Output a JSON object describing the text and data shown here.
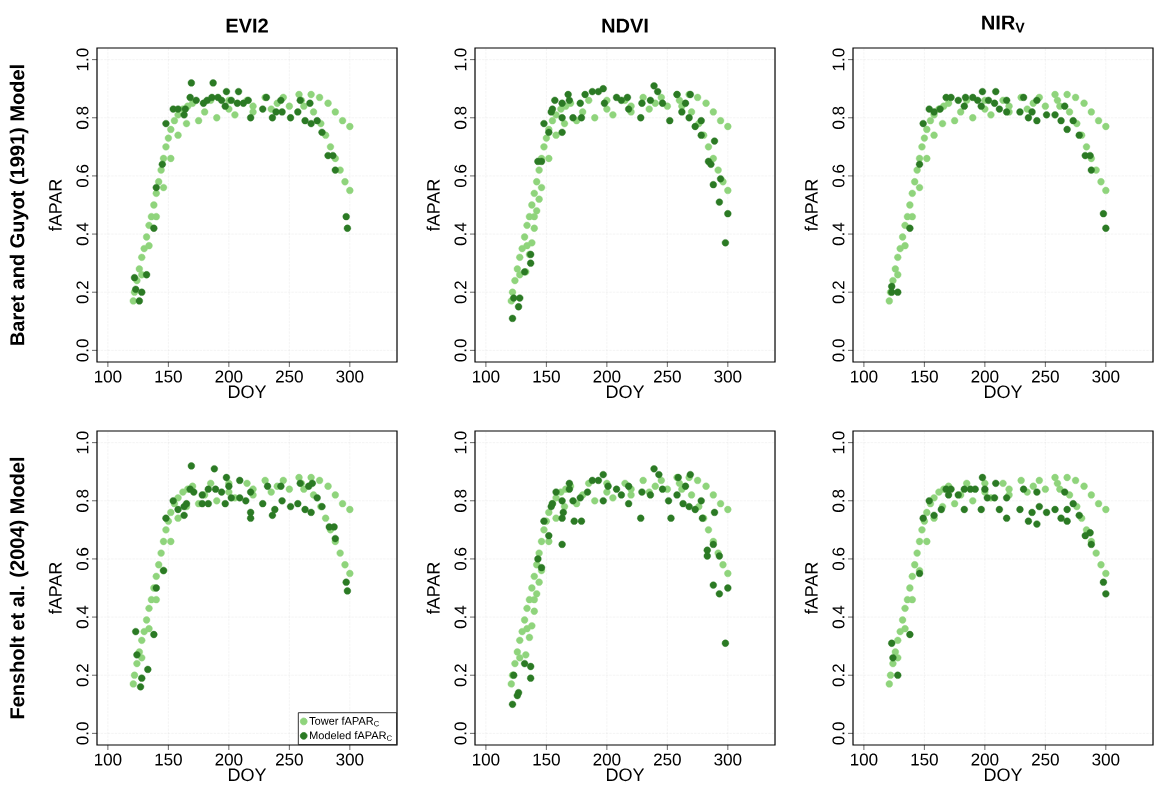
{
  "chart_data": [
    {
      "type": "scatter",
      "title": "EVI2",
      "xlabel": "DOY",
      "ylabel": "fAPAR",
      "annotations": [
        "Baret and Guyot (1991) Model"
      ],
      "xlim": [
        91,
        339
      ],
      "ylim": [
        -0.04,
        1.04
      ],
      "xticks": [
        100,
        150,
        200,
        250,
        300
      ],
      "yticks": [
        {
          "value": 0,
          "label": "0.0"
        },
        {
          "value": 0.2,
          "label": "0.2"
        },
        {
          "value": 0.4,
          "label": "0.4"
        },
        {
          "value": 0.6,
          "label": "0.6"
        },
        {
          "value": 0.8,
          "label": "0.8"
        },
        {
          "value": 1.0,
          "label": "1.0"
        }
      ],
      "grid": true,
      "marker": "circle",
      "series": [
        {
          "color": "#8fd47c",
          "x": [
            121,
            122,
            124,
            126,
            128,
            130,
            132,
            134,
            136,
            138,
            140,
            142,
            144,
            146,
            148,
            150,
            152,
            155,
            158,
            162,
            166,
            128,
            134,
            140,
            146,
            152,
            158,
            165,
            175,
            190,
            205,
            220,
            235,
            250,
            262,
            170,
            185,
            200,
            215,
            230,
            245,
            258,
            268,
            180,
            200,
            220,
            240,
            260,
            275,
            282,
            288,
            294,
            300,
            270,
            276,
            280,
            284,
            288,
            292,
            296,
            300
          ],
          "values": [
            0.17,
            0.2,
            0.24,
            0.28,
            0.32,
            0.35,
            0.39,
            0.43,
            0.46,
            0.5,
            0.54,
            0.58,
            0.62,
            0.66,
            0.7,
            0.73,
            0.76,
            0.79,
            0.81,
            0.83,
            0.84,
            0.26,
            0.36,
            0.46,
            0.56,
            0.66,
            0.74,
            0.78,
            0.79,
            0.8,
            0.81,
            0.82,
            0.83,
            0.84,
            0.84,
            0.85,
            0.86,
            0.86,
            0.86,
            0.87,
            0.87,
            0.88,
            0.88,
            0.82,
            0.83,
            0.84,
            0.85,
            0.86,
            0.87,
            0.85,
            0.82,
            0.79,
            0.77,
            0.82,
            0.78,
            0.74,
            0.7,
            0.66,
            0.62,
            0.58,
            0.55
          ]
        },
        {
          "color": "#2b7a24",
          "x": [
            122,
            123,
            128,
            126,
            132,
            138,
            140,
            145,
            148,
            154,
            158,
            163,
            164,
            169,
            168,
            173,
            179,
            182,
            187,
            186,
            191,
            194,
            198,
            197,
            202,
            208,
            207,
            212,
            216,
            218,
            228,
            231,
            236,
            239,
            243,
            244,
            251,
            259,
            257,
            263,
            267,
            268,
            273,
            277,
            282,
            286,
            288,
            297,
            298
          ],
          "values": [
            0.25,
            0.21,
            0.2,
            0.17,
            0.26,
            0.42,
            0.56,
            0.64,
            0.78,
            0.83,
            0.83,
            0.81,
            0.83,
            0.92,
            0.87,
            0.86,
            0.85,
            0.86,
            0.92,
            0.87,
            0.87,
            0.86,
            0.89,
            0.84,
            0.86,
            0.89,
            0.85,
            0.85,
            0.86,
            0.8,
            0.83,
            0.87,
            0.8,
            0.82,
            0.86,
            0.82,
            0.8,
            0.86,
            0.82,
            0.79,
            0.85,
            0.78,
            0.79,
            0.75,
            0.67,
            0.67,
            0.62,
            0.46,
            0.42
          ]
        }
      ]
    },
    {
      "type": "scatter",
      "title": "NDVI",
      "xlabel": "DOY",
      "ylabel": "fAPAR",
      "xlim": [
        91,
        339
      ],
      "ylim": [
        -0.04,
        1.04
      ],
      "xticks": [
        100,
        150,
        200,
        250,
        300
      ],
      "yticks": [
        {
          "value": 0,
          "label": "0.0"
        },
        {
          "value": 0.2,
          "label": "0.2"
        },
        {
          "value": 0.4,
          "label": "0.4"
        },
        {
          "value": 0.6,
          "label": "0.6"
        },
        {
          "value": 0.8,
          "label": "0.8"
        },
        {
          "value": 1.0,
          "label": "1.0"
        }
      ],
      "grid": true,
      "marker": "circle",
      "series": [
        {
          "color": "#8fd47c",
          "x": [
            121,
            122,
            124,
            126,
            128,
            130,
            132,
            134,
            136,
            138,
            140,
            142,
            144,
            146,
            148,
            150,
            152,
            155,
            158,
            162,
            166,
            128,
            134,
            140,
            146,
            152,
            158,
            165,
            175,
            190,
            205,
            220,
            235,
            250,
            262,
            170,
            185,
            200,
            215,
            230,
            245,
            258,
            268,
            180,
            200,
            220,
            240,
            260,
            275,
            282,
            288,
            294,
            300,
            270,
            276,
            280,
            284,
            288,
            292,
            296,
            300,
            133,
            136,
            138,
            140,
            142,
            144
          ],
          "values": [
            0.17,
            0.2,
            0.24,
            0.28,
            0.32,
            0.35,
            0.39,
            0.43,
            0.46,
            0.5,
            0.54,
            0.58,
            0.62,
            0.66,
            0.7,
            0.73,
            0.76,
            0.79,
            0.81,
            0.83,
            0.84,
            0.26,
            0.36,
            0.46,
            0.56,
            0.66,
            0.74,
            0.78,
            0.79,
            0.8,
            0.81,
            0.82,
            0.83,
            0.84,
            0.84,
            0.85,
            0.86,
            0.86,
            0.86,
            0.87,
            0.87,
            0.88,
            0.88,
            0.82,
            0.83,
            0.84,
            0.85,
            0.86,
            0.87,
            0.85,
            0.82,
            0.79,
            0.77,
            0.82,
            0.78,
            0.74,
            0.7,
            0.66,
            0.62,
            0.58,
            0.55,
            0.27,
            0.33,
            0.37,
            0.42,
            0.48,
            0.52
          ]
        },
        {
          "color": "#2b7a24",
          "x": [
            122,
            123,
            128,
            127,
            132,
            137,
            137,
            143,
            146,
            148,
            152,
            154,
            155,
            157,
            163,
            163,
            163,
            168,
            169,
            172,
            178,
            179,
            182,
            188,
            193,
            197,
            198,
            208,
            212,
            217,
            218,
            228,
            229,
            236,
            239,
            242,
            246,
            252,
            258,
            262,
            265,
            269,
            268,
            273,
            278,
            278,
            289,
            284,
            286,
            288,
            294,
            293,
            300,
            298
          ],
          "values": [
            0.11,
            0.18,
            0.18,
            0.15,
            0.27,
            0.3,
            0.33,
            0.65,
            0.65,
            0.78,
            0.75,
            0.82,
            0.83,
            0.86,
            0.85,
            0.8,
            0.75,
            0.88,
            0.86,
            0.8,
            0.85,
            0.8,
            0.88,
            0.89,
            0.89,
            0.9,
            0.85,
            0.87,
            0.86,
            0.87,
            0.83,
            0.8,
            0.85,
            0.86,
            0.91,
            0.89,
            0.85,
            0.79,
            0.88,
            0.82,
            0.85,
            0.88,
            0.8,
            0.77,
            0.79,
            0.74,
            0.72,
            0.65,
            0.64,
            0.57,
            0.59,
            0.51,
            0.47,
            0.37
          ]
        }
      ]
    },
    {
      "type": "scatter",
      "title": "NIR$_{V}$",
      "xlabel": "DOY",
      "ylabel": "fAPAR",
      "xlim": [
        91,
        339
      ],
      "ylim": [
        -0.04,
        1.04
      ],
      "xticks": [
        100,
        150,
        200,
        250,
        300
      ],
      "yticks": [
        {
          "value": 0,
          "label": "0.0"
        },
        {
          "value": 0.2,
          "label": "0.2"
        },
        {
          "value": 0.4,
          "label": "0.4"
        },
        {
          "value": 0.6,
          "label": "0.6"
        },
        {
          "value": 0.8,
          "label": "0.8"
        },
        {
          "value": 1.0,
          "label": "1.0"
        }
      ],
      "grid": true,
      "marker": "circle",
      "series": [
        {
          "color": "#8fd47c",
          "x": [
            121,
            122,
            124,
            126,
            128,
            130,
            132,
            134,
            136,
            138,
            140,
            142,
            144,
            146,
            148,
            150,
            152,
            155,
            158,
            162,
            166,
            128,
            134,
            140,
            146,
            152,
            158,
            165,
            175,
            190,
            205,
            220,
            235,
            250,
            262,
            170,
            185,
            200,
            215,
            230,
            245,
            258,
            268,
            180,
            200,
            220,
            240,
            260,
            275,
            282,
            288,
            294,
            300,
            270,
            276,
            280,
            284,
            288,
            292,
            296,
            300
          ],
          "values": [
            0.17,
            0.2,
            0.24,
            0.28,
            0.32,
            0.35,
            0.39,
            0.43,
            0.46,
            0.5,
            0.54,
            0.58,
            0.62,
            0.66,
            0.7,
            0.73,
            0.76,
            0.79,
            0.81,
            0.83,
            0.84,
            0.26,
            0.36,
            0.46,
            0.56,
            0.66,
            0.74,
            0.78,
            0.79,
            0.8,
            0.81,
            0.82,
            0.83,
            0.84,
            0.84,
            0.85,
            0.86,
            0.86,
            0.86,
            0.87,
            0.87,
            0.88,
            0.88,
            0.82,
            0.83,
            0.84,
            0.85,
            0.86,
            0.87,
            0.85,
            0.82,
            0.79,
            0.77,
            0.82,
            0.78,
            0.74,
            0.7,
            0.66,
            0.62,
            0.58,
            0.55
          ]
        },
        {
          "color": "#2b7a24",
          "x": [
            123,
            123,
            128,
            138,
            146,
            149,
            154,
            158,
            163,
            168,
            172,
            178,
            183,
            184,
            190,
            194,
            197,
            198,
            203,
            209,
            208,
            212,
            218,
            218,
            229,
            232,
            236,
            239,
            243,
            243,
            251,
            258,
            263,
            266,
            268,
            273,
            278,
            283,
            287,
            288,
            298,
            300
          ],
          "values": [
            0.22,
            0.2,
            0.2,
            0.42,
            0.64,
            0.78,
            0.83,
            0.82,
            0.83,
            0.87,
            0.87,
            0.86,
            0.84,
            0.87,
            0.87,
            0.86,
            0.84,
            0.89,
            0.86,
            0.89,
            0.85,
            0.83,
            0.86,
            0.82,
            0.82,
            0.87,
            0.8,
            0.82,
            0.86,
            0.79,
            0.81,
            0.81,
            0.79,
            0.84,
            0.76,
            0.79,
            0.74,
            0.67,
            0.67,
            0.62,
            0.47,
            0.42
          ]
        }
      ]
    },
    {
      "type": "scatter",
      "xlabel": "DOY",
      "ylabel": "fAPAR",
      "annotations": [
        "Fensholt et al. (2004) Model"
      ],
      "xlim": [
        91,
        339
      ],
      "ylim": [
        -0.04,
        1.04
      ],
      "xticks": [
        100,
        150,
        200,
        250,
        300
      ],
      "yticks": [
        {
          "value": 0,
          "label": "0.0"
        },
        {
          "value": 0.2,
          "label": "0.2"
        },
        {
          "value": 0.4,
          "label": "0.4"
        },
        {
          "value": 0.6,
          "label": "0.6"
        },
        {
          "value": 0.8,
          "label": "0.8"
        },
        {
          "value": 1.0,
          "label": "1.0"
        }
      ],
      "grid": true,
      "marker": "circle",
      "legend": "bottom right",
      "series": [
        {
          "name": "Tower fAPAR$_{C}$",
          "color": "#8fd47c",
          "x": [
            121,
            122,
            124,
            126,
            128,
            130,
            132,
            134,
            136,
            138,
            140,
            142,
            144,
            146,
            148,
            150,
            152,
            155,
            158,
            162,
            166,
            128,
            134,
            140,
            146,
            152,
            158,
            165,
            175,
            190,
            205,
            220,
            235,
            250,
            262,
            170,
            185,
            200,
            215,
            230,
            245,
            258,
            268,
            180,
            200,
            220,
            240,
            260,
            275,
            282,
            288,
            294,
            300,
            270,
            276,
            280,
            284,
            288,
            292,
            296,
            300
          ],
          "values": [
            0.17,
            0.2,
            0.24,
            0.28,
            0.32,
            0.35,
            0.39,
            0.43,
            0.46,
            0.5,
            0.54,
            0.58,
            0.62,
            0.66,
            0.7,
            0.73,
            0.76,
            0.79,
            0.81,
            0.83,
            0.84,
            0.26,
            0.36,
            0.46,
            0.56,
            0.66,
            0.74,
            0.78,
            0.79,
            0.8,
            0.81,
            0.82,
            0.83,
            0.84,
            0.84,
            0.85,
            0.86,
            0.86,
            0.86,
            0.87,
            0.87,
            0.88,
            0.88,
            0.82,
            0.83,
            0.84,
            0.85,
            0.86,
            0.87,
            0.85,
            0.82,
            0.79,
            0.77,
            0.82,
            0.78,
            0.74,
            0.7,
            0.66,
            0.62,
            0.58,
            0.55
          ]
        },
        {
          "name": "Modeled fAPAR$_{C}$",
          "color": "#2b7a24",
          "x": [
            123,
            124,
            128,
            127,
            133,
            138,
            140,
            146,
            148,
            154,
            158,
            163,
            163,
            165,
            169,
            168,
            171,
            178,
            178,
            183,
            183,
            188,
            189,
            194,
            197,
            198,
            200,
            202,
            209,
            209,
            214,
            218,
            218,
            218,
            228,
            232,
            236,
            238,
            243,
            244,
            251,
            257,
            259,
            263,
            266,
            268,
            269,
            273,
            277,
            283,
            287,
            288,
            297,
            298
          ],
          "values": [
            0.35,
            0.27,
            0.19,
            0.16,
            0.22,
            0.34,
            0.5,
            0.56,
            0.74,
            0.8,
            0.77,
            0.78,
            0.75,
            0.79,
            0.92,
            0.84,
            0.83,
            0.82,
            0.79,
            0.79,
            0.84,
            0.91,
            0.84,
            0.83,
            0.79,
            0.88,
            0.85,
            0.81,
            0.87,
            0.81,
            0.8,
            0.83,
            0.76,
            0.74,
            0.79,
            0.85,
            0.75,
            0.77,
            0.85,
            0.8,
            0.78,
            0.79,
            0.86,
            0.77,
            0.85,
            0.76,
            0.86,
            0.81,
            0.78,
            0.71,
            0.71,
            0.67,
            0.52,
            0.49
          ]
        }
      ]
    },
    {
      "type": "scatter",
      "xlabel": "DOY",
      "ylabel": "fAPAR",
      "xlim": [
        91,
        339
      ],
      "ylim": [
        -0.04,
        1.04
      ],
      "xticks": [
        100,
        150,
        200,
        250,
        300
      ],
      "yticks": [
        {
          "value": 0,
          "label": "0.0"
        },
        {
          "value": 0.2,
          "label": "0.2"
        },
        {
          "value": 0.4,
          "label": "0.4"
        },
        {
          "value": 0.6,
          "label": "0.6"
        },
        {
          "value": 0.8,
          "label": "0.8"
        },
        {
          "value": 1.0,
          "label": "1.0"
        }
      ],
      "grid": true,
      "marker": "circle",
      "series": [
        {
          "color": "#8fd47c",
          "x": [
            121,
            122,
            124,
            126,
            128,
            130,
            132,
            134,
            136,
            138,
            140,
            142,
            144,
            146,
            148,
            150,
            152,
            155,
            158,
            162,
            166,
            128,
            134,
            140,
            146,
            152,
            158,
            165,
            175,
            190,
            205,
            220,
            235,
            250,
            262,
            170,
            185,
            200,
            215,
            230,
            245,
            258,
            268,
            180,
            200,
            220,
            240,
            260,
            275,
            282,
            288,
            294,
            300,
            270,
            276,
            280,
            284,
            288,
            292,
            296,
            300,
            133,
            136,
            138,
            140,
            142,
            144
          ],
          "values": [
            0.17,
            0.2,
            0.24,
            0.28,
            0.32,
            0.35,
            0.39,
            0.43,
            0.46,
            0.5,
            0.54,
            0.58,
            0.62,
            0.66,
            0.7,
            0.73,
            0.76,
            0.79,
            0.81,
            0.83,
            0.84,
            0.26,
            0.36,
            0.46,
            0.56,
            0.66,
            0.74,
            0.78,
            0.79,
            0.8,
            0.81,
            0.82,
            0.83,
            0.84,
            0.84,
            0.85,
            0.86,
            0.86,
            0.86,
            0.87,
            0.87,
            0.88,
            0.88,
            0.82,
            0.83,
            0.84,
            0.85,
            0.86,
            0.87,
            0.85,
            0.82,
            0.79,
            0.77,
            0.82,
            0.78,
            0.74,
            0.7,
            0.66,
            0.62,
            0.58,
            0.55,
            0.27,
            0.33,
            0.37,
            0.42,
            0.48,
            0.52
          ]
        },
        {
          "color": "#2b7a24",
          "x": [
            122,
            123,
            127,
            126,
            132,
            137,
            137,
            143,
            146,
            148,
            152,
            154,
            155,
            158,
            163,
            163,
            163,
            164,
            169,
            169,
            172,
            173,
            179,
            178,
            184,
            188,
            193,
            197,
            197,
            201,
            208,
            212,
            218,
            218,
            228,
            229,
            236,
            239,
            243,
            246,
            251,
            253,
            258,
            259,
            263,
            265,
            269,
            268,
            273,
            279,
            289,
            278,
            283,
            288,
            283,
            293,
            288,
            293,
            300,
            298
          ],
          "values": [
            0.1,
            0.2,
            0.14,
            0.13,
            0.24,
            0.23,
            0.19,
            0.6,
            0.57,
            0.73,
            0.68,
            0.78,
            0.79,
            0.83,
            0.8,
            0.74,
            0.65,
            0.76,
            0.86,
            0.84,
            0.8,
            0.73,
            0.73,
            0.81,
            0.83,
            0.87,
            0.87,
            0.89,
            0.8,
            0.85,
            0.84,
            0.82,
            0.85,
            0.79,
            0.74,
            0.83,
            0.82,
            0.91,
            0.89,
            0.84,
            0.8,
            0.74,
            0.82,
            0.88,
            0.79,
            0.85,
            0.89,
            0.78,
            0.77,
            0.74,
            0.76,
            0.8,
            0.63,
            0.65,
            0.61,
            0.61,
            0.51,
            0.48,
            0.5,
            0.31
          ]
        }
      ]
    },
    {
      "type": "scatter",
      "xlabel": "DOY",
      "ylabel": "fAPAR",
      "xlim": [
        91,
        339
      ],
      "ylim": [
        -0.04,
        1.04
      ],
      "xticks": [
        100,
        150,
        200,
        250,
        300
      ],
      "yticks": [
        {
          "value": 0,
          "label": "0.0"
        },
        {
          "value": 0.2,
          "label": "0.2"
        },
        {
          "value": 0.4,
          "label": "0.4"
        },
        {
          "value": 0.6,
          "label": "0.6"
        },
        {
          "value": 0.8,
          "label": "0.8"
        },
        {
          "value": 1.0,
          "label": "1.0"
        }
      ],
      "grid": true,
      "marker": "circle",
      "series": [
        {
          "color": "#8fd47c",
          "x": [
            121,
            122,
            124,
            126,
            128,
            130,
            132,
            134,
            136,
            138,
            140,
            142,
            144,
            146,
            148,
            150,
            152,
            155,
            158,
            162,
            166,
            128,
            134,
            140,
            146,
            152,
            158,
            165,
            175,
            190,
            205,
            220,
            235,
            250,
            262,
            170,
            185,
            200,
            215,
            230,
            245,
            258,
            268,
            180,
            200,
            220,
            240,
            260,
            275,
            282,
            288,
            294,
            300,
            270,
            276,
            280,
            284,
            288,
            292,
            296,
            300
          ],
          "values": [
            0.17,
            0.2,
            0.24,
            0.28,
            0.32,
            0.35,
            0.39,
            0.43,
            0.46,
            0.5,
            0.54,
            0.58,
            0.62,
            0.66,
            0.7,
            0.73,
            0.76,
            0.79,
            0.81,
            0.83,
            0.84,
            0.26,
            0.36,
            0.46,
            0.56,
            0.66,
            0.74,
            0.78,
            0.79,
            0.8,
            0.81,
            0.82,
            0.83,
            0.84,
            0.84,
            0.85,
            0.86,
            0.86,
            0.86,
            0.87,
            0.87,
            0.88,
            0.88,
            0.82,
            0.83,
            0.84,
            0.85,
            0.86,
            0.87,
            0.85,
            0.82,
            0.79,
            0.77,
            0.82,
            0.78,
            0.74,
            0.7,
            0.66,
            0.62,
            0.58,
            0.55
          ]
        },
        {
          "color": "#2b7a24",
          "x": [
            123,
            124,
            128,
            138,
            146,
            149,
            154,
            158,
            164,
            168,
            170,
            172,
            178,
            183,
            183,
            188,
            192,
            197,
            198,
            200,
            202,
            208,
            209,
            212,
            218,
            218,
            229,
            232,
            236,
            239,
            243,
            243,
            245,
            251,
            258,
            263,
            266,
            268,
            268,
            273,
            278,
            283,
            287,
            288,
            298,
            300
          ],
          "values": [
            0.31,
            0.26,
            0.2,
            0.34,
            0.55,
            0.74,
            0.8,
            0.75,
            0.77,
            0.84,
            0.82,
            0.84,
            0.82,
            0.84,
            0.77,
            0.84,
            0.84,
            0.77,
            0.88,
            0.84,
            0.81,
            0.81,
            0.86,
            0.77,
            0.81,
            0.74,
            0.77,
            0.84,
            0.73,
            0.76,
            0.83,
            0.72,
            0.78,
            0.76,
            0.77,
            0.74,
            0.83,
            0.73,
            0.77,
            0.79,
            0.75,
            0.68,
            0.69,
            0.65,
            0.52,
            0.48
          ]
        }
      ]
    }
  ]
}
